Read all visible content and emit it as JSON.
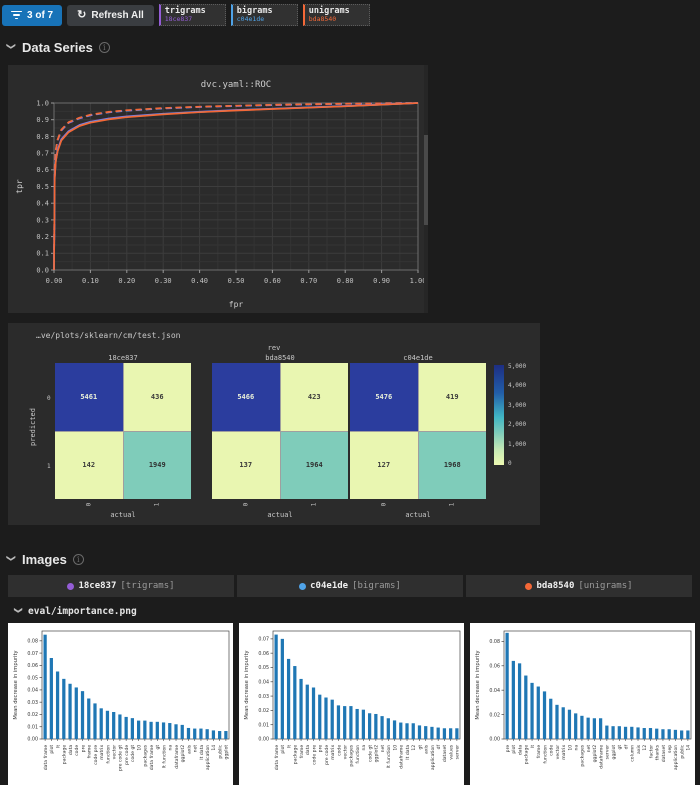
{
  "toolbar": {
    "filter_count": "3 of 7",
    "refresh_label": "Refresh All",
    "experiments": [
      {
        "name": "trigrams",
        "hash": "18ce837",
        "color": "#945dd6"
      },
      {
        "name": "bigrams",
        "hash": "c04e1de",
        "color": "#4fa3e8"
      },
      {
        "name": "unigrams",
        "hash": "bda8540",
        "color": "#f46837"
      }
    ]
  },
  "sections": {
    "data_series": "Data Series",
    "images": "Images"
  },
  "image_legend": [
    {
      "hash": "18ce837",
      "name": "[trigrams]",
      "color": "#945dd6"
    },
    {
      "hash": "c04e1de",
      "name": "[bigrams]",
      "color": "#4fa3e8"
    },
    {
      "hash": "bda8540",
      "name": "[unigrams]",
      "color": "#f46837"
    }
  ],
  "importance_file": "eval/importance.png",
  "colors": {
    "accent_blue": "#1873b8",
    "panel": "#2b2b2b",
    "bar_blue": "#1f77b4"
  },
  "chart_data": [
    {
      "type": "line",
      "title": "dvc.yaml::ROC",
      "xlabel": "fpr",
      "ylabel": "tpr",
      "xlim": [
        0,
        1
      ],
      "ylim": [
        0,
        1
      ],
      "x_ticks": [
        "0.00",
        "0.10",
        "0.20",
        "0.30",
        "0.40",
        "0.50",
        "0.60",
        "0.70",
        "0.80",
        "0.90",
        "1.00"
      ],
      "y_ticks": [
        "0.0",
        "0.1",
        "0.2",
        "0.3",
        "0.4",
        "0.5",
        "0.6",
        "0.7",
        "0.8",
        "0.9",
        "1.0"
      ],
      "grid": true,
      "series": [
        {
          "name": "18ce837",
          "color": "#945dd6",
          "dash": true,
          "points": [
            [
              0,
              0
            ],
            [
              0.002,
              0.615
            ],
            [
              0.005,
              0.715
            ],
            [
              0.01,
              0.775
            ],
            [
              0.02,
              0.835
            ],
            [
              0.04,
              0.88
            ],
            [
              0.07,
              0.908
            ],
            [
              0.1,
              0.926
            ],
            [
              0.15,
              0.944
            ],
            [
              0.2,
              0.954
            ],
            [
              0.3,
              0.967
            ],
            [
              0.4,
              0.976
            ],
            [
              0.5,
              0.982
            ],
            [
              0.6,
              0.987
            ],
            [
              0.7,
              0.991
            ],
            [
              0.8,
              0.995
            ],
            [
              0.9,
              0.998
            ],
            [
              1,
              1
            ]
          ]
        },
        {
          "name": "c04e1de",
          "color": "#4fa3e8",
          "dash": true,
          "points": [
            [
              0,
              0
            ],
            [
              0.002,
              0.618
            ],
            [
              0.005,
              0.718
            ],
            [
              0.01,
              0.778
            ],
            [
              0.02,
              0.838
            ],
            [
              0.04,
              0.883
            ],
            [
              0.07,
              0.91
            ],
            [
              0.1,
              0.928
            ],
            [
              0.15,
              0.945
            ],
            [
              0.2,
              0.955
            ],
            [
              0.3,
              0.968
            ],
            [
              0.4,
              0.977
            ],
            [
              0.5,
              0.983
            ],
            [
              0.6,
              0.988
            ],
            [
              0.7,
              0.992
            ],
            [
              0.8,
              0.995
            ],
            [
              0.9,
              0.998
            ],
            [
              1,
              1
            ]
          ]
        },
        {
          "name": "bda8540",
          "color": "#f46837",
          "dash": true,
          "points": [
            [
              0,
              0
            ],
            [
              0.002,
              0.62
            ],
            [
              0.005,
              0.72
            ],
            [
              0.01,
              0.78
            ],
            [
              0.02,
              0.84
            ],
            [
              0.04,
              0.885
            ],
            [
              0.07,
              0.912
            ],
            [
              0.1,
              0.93
            ],
            [
              0.15,
              0.947
            ],
            [
              0.2,
              0.957
            ],
            [
              0.3,
              0.97
            ],
            [
              0.4,
              0.978
            ],
            [
              0.5,
              0.984
            ],
            [
              0.6,
              0.989
            ],
            [
              0.7,
              0.993
            ],
            [
              0.8,
              0.996
            ],
            [
              0.9,
              0.998
            ],
            [
              1,
              1
            ]
          ]
        },
        {
          "name": "18ce837",
          "color": "#945dd6",
          "dash": false,
          "points": [
            [
              0,
              0
            ],
            [
              0.002,
              0.56
            ],
            [
              0.005,
              0.66
            ],
            [
              0.01,
              0.72
            ],
            [
              0.02,
              0.783
            ],
            [
              0.04,
              0.832
            ],
            [
              0.07,
              0.868
            ],
            [
              0.1,
              0.888
            ],
            [
              0.15,
              0.907
            ],
            [
              0.2,
              0.92
            ],
            [
              0.3,
              0.936
            ],
            [
              0.4,
              0.948
            ],
            [
              0.5,
              0.958
            ],
            [
              0.6,
              0.966
            ],
            [
              0.7,
              0.974
            ],
            [
              0.8,
              0.982
            ],
            [
              0.9,
              0.991
            ],
            [
              1,
              1
            ]
          ]
        },
        {
          "name": "c04e1de",
          "color": "#4fa3e8",
          "dash": false,
          "points": [
            [
              0,
              0
            ],
            [
              0.002,
              0.555
            ],
            [
              0.005,
              0.655
            ],
            [
              0.01,
              0.715
            ],
            [
              0.02,
              0.778
            ],
            [
              0.04,
              0.828
            ],
            [
              0.07,
              0.865
            ],
            [
              0.1,
              0.885
            ],
            [
              0.15,
              0.904
            ],
            [
              0.2,
              0.917
            ],
            [
              0.3,
              0.934
            ],
            [
              0.4,
              0.946
            ],
            [
              0.5,
              0.956
            ],
            [
              0.6,
              0.965
            ],
            [
              0.7,
              0.973
            ],
            [
              0.8,
              0.981
            ],
            [
              0.9,
              0.99
            ],
            [
              1,
              1
            ]
          ]
        },
        {
          "name": "bda8540",
          "color": "#f46837",
          "dash": false,
          "points": [
            [
              0,
              0
            ],
            [
              0.002,
              0.55
            ],
            [
              0.005,
              0.65
            ],
            [
              0.01,
              0.71
            ],
            [
              0.02,
              0.775
            ],
            [
              0.04,
              0.825
            ],
            [
              0.07,
              0.862
            ],
            [
              0.1,
              0.882
            ],
            [
              0.15,
              0.902
            ],
            [
              0.2,
              0.915
            ],
            [
              0.3,
              0.932
            ],
            [
              0.4,
              0.945
            ],
            [
              0.5,
              0.955
            ],
            [
              0.6,
              0.964
            ],
            [
              0.7,
              0.972
            ],
            [
              0.8,
              0.98
            ],
            [
              0.9,
              0.99
            ],
            [
              1,
              1
            ]
          ]
        }
      ]
    },
    {
      "type": "heatmap",
      "title": "…ve/plots/sklearn/cm/test.json",
      "facet_label": "rev",
      "xlabel": "actual",
      "ylabel": "predicted",
      "x_ticks": [
        "0",
        "1"
      ],
      "y_ticks": [
        "0",
        "1"
      ],
      "colorbar_ticks": [
        "5,000",
        "4,000",
        "3,000",
        "2,000",
        "1,000",
        "0"
      ],
      "matrices": [
        {
          "rev": "18ce837",
          "cells": [
            [
              5461,
              436
            ],
            [
              142,
              1949
            ]
          ]
        },
        {
          "rev": "bda8540",
          "cells": [
            [
              5466,
              423
            ],
            [
              137,
              1964
            ]
          ]
        },
        {
          "rev": "c04e1de",
          "cells": [
            [
              5476,
              419
            ],
            [
              127,
              1968
            ]
          ]
        }
      ]
    },
    {
      "type": "bar",
      "title": "eval/importance.png (18ce837 trigrams)",
      "ylabel": "Mean decrease in impurity",
      "ylim": [
        0,
        0.088
      ],
      "ytick_max": 0.08,
      "ystep": 0.01,
      "bar_color": "#1f77b4",
      "categories": [
        "data frame",
        "plot",
        "lt",
        "package",
        "data",
        "code",
        "pre",
        "frame",
        "code pre",
        "matrix",
        "function",
        "vector",
        "pre code gt",
        "pre code",
        "code gt",
        "10",
        "packages",
        "data frame",
        "gt",
        "lt function",
        "na",
        "dataframe",
        "ggplot2",
        "axis",
        "net",
        "lt data",
        "application",
        "14",
        "public",
        "ggplot"
      ],
      "values": [
        0.085,
        0.066,
        0.055,
        0.049,
        0.045,
        0.042,
        0.039,
        0.033,
        0.029,
        0.025,
        0.023,
        0.022,
        0.02,
        0.018,
        0.017,
        0.015,
        0.015,
        0.014,
        0.014,
        0.0135,
        0.013,
        0.012,
        0.0115,
        0.009,
        0.0085,
        0.0085,
        0.008,
        0.007,
        0.0065,
        0.0065
      ]
    },
    {
      "type": "bar",
      "title": "eval/importance.png (c04e1de bigrams)",
      "ylabel": "Mean decrease in impurity",
      "ylim": [
        0,
        0.0755
      ],
      "ytick_max": 0.07,
      "ystep": 0.01,
      "bar_color": "#1f77b4",
      "categories": [
        "data frame",
        "plot",
        "lt",
        "package",
        "frame",
        "data",
        "code pre",
        "pre",
        "pre code",
        "matrix",
        "code",
        "vector",
        "packages",
        "function",
        "na",
        "code gt",
        "ggplot2",
        "net",
        "lt function",
        "10",
        "dataframe",
        "lt data",
        "12",
        "gt",
        "axis",
        "application",
        "df",
        "dataset",
        "values",
        "server"
      ],
      "values": [
        0.073,
        0.07,
        0.056,
        0.051,
        0.042,
        0.038,
        0.036,
        0.031,
        0.029,
        0.0275,
        0.0235,
        0.023,
        0.023,
        0.021,
        0.0205,
        0.018,
        0.0175,
        0.016,
        0.0145,
        0.013,
        0.0115,
        0.011,
        0.011,
        0.0095,
        0.009,
        0.0085,
        0.008,
        0.0075,
        0.0075,
        0.0075
      ]
    },
    {
      "type": "bar",
      "title": "eval/importance.png (bda8540 unigrams)",
      "ylabel": "Mean decrease in impurity",
      "ylim": [
        0,
        0.0885
      ],
      "ytick_max": 0.08,
      "ystep": 0.02,
      "bar_color": "#1f77b4",
      "categories": [
        "pre",
        "plot",
        "data",
        "package",
        "lt",
        "frame",
        "function",
        "code",
        "vector",
        "matrix",
        "10",
        "na",
        "packages",
        "net",
        "ggplot2",
        "dataframe",
        "server",
        "ggplot",
        "gt",
        "df",
        "column",
        "axis",
        "12",
        "factor",
        "thanks",
        "dataset",
        "sep",
        "application",
        "public",
        "14"
      ],
      "values": [
        0.087,
        0.064,
        0.062,
        0.052,
        0.046,
        0.043,
        0.039,
        0.033,
        0.028,
        0.026,
        0.024,
        0.021,
        0.019,
        0.0175,
        0.017,
        0.017,
        0.011,
        0.0105,
        0.0105,
        0.01,
        0.01,
        0.0095,
        0.009,
        0.009,
        0.0085,
        0.008,
        0.008,
        0.0075,
        0.007,
        0.007
      ]
    }
  ]
}
